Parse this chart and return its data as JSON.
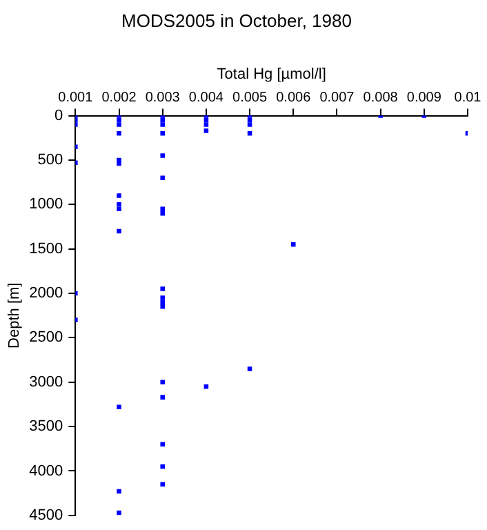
{
  "chart_data": {
    "type": "scatter",
    "title": "MODS2005 in October, 1980",
    "xlabel": "Total Hg [µmol/l]",
    "ylabel": "Depth [m]",
    "x": [
      0.001,
      0.001,
      0.001,
      0.001,
      0.001,
      0.001,
      0.001,
      0.002,
      0.002,
      0.002,
      0.002,
      0.002,
      0.002,
      0.002,
      0.002,
      0.002,
      0.002,
      0.002,
      0.002,
      0.002,
      0.003,
      0.003,
      0.003,
      0.003,
      0.003,
      0.003,
      0.003,
      0.003,
      0.003,
      0.003,
      0.003,
      0.003,
      0.003,
      0.003,
      0.003,
      0.003,
      0.003,
      0.004,
      0.004,
      0.004,
      0.004,
      0.004,
      0.005,
      0.005,
      0.005,
      0.005,
      0.005,
      0.006,
      0.008,
      0.009,
      0.01
    ],
    "values": [
      0,
      50,
      100,
      350,
      530,
      2000,
      2300,
      0,
      50,
      100,
      200,
      500,
      540,
      900,
      1000,
      1050,
      1300,
      3280,
      4230,
      4470,
      0,
      50,
      100,
      200,
      450,
      700,
      1050,
      1100,
      1950,
      2050,
      2100,
      2150,
      3000,
      3170,
      3700,
      3950,
      4150,
      0,
      50,
      100,
      170,
      3050,
      0,
      50,
      100,
      200,
      2850,
      1450,
      0,
      0,
      200
    ],
    "color": "#0000ff",
    "marker": "square",
    "xlim": [
      0.001,
      0.01
    ],
    "xticks": [
      0.001,
      0.002,
      0.003,
      0.004,
      0.005,
      0.006,
      0.007,
      0.008,
      0.009,
      0.01
    ],
    "ylim": [
      4500,
      0
    ],
    "yticks": [
      0,
      500,
      1000,
      1500,
      2000,
      2500,
      3000,
      3500,
      4000,
      4500
    ],
    "grid": false
  }
}
